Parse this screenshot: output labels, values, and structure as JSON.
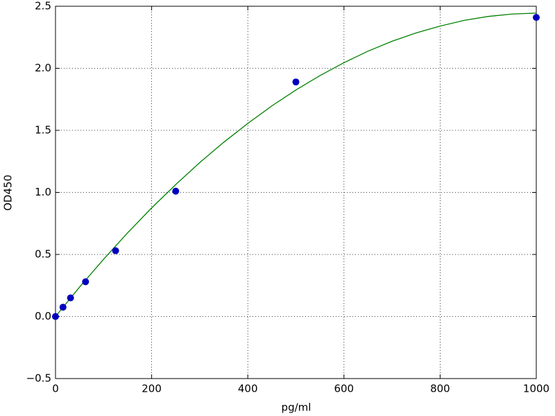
{
  "chart_data": {
    "type": "scatter",
    "xlabel": "pg/ml",
    "ylabel": "OD450",
    "xlim": [
      0,
      1000
    ],
    "ylim": [
      -0.5,
      2.5
    ],
    "xticks": [
      0,
      200,
      400,
      600,
      800,
      1000
    ],
    "yticks": [
      {
        "value": -0.5,
        "label": "−0.5"
      },
      {
        "value": 0,
        "label": "0.0"
      },
      0.5,
      {
        "value": 1,
        "label": "1.0"
      },
      1.5,
      {
        "value": 2,
        "label": "2.0"
      },
      2.5
    ],
    "grid": true,
    "series": [
      {
        "mode": "markers",
        "color": "#0000bf",
        "x": [
          0,
          15.6,
          31.25,
          62.5,
          125,
          250,
          500,
          1000
        ],
        "values": [
          0.0,
          0.075,
          0.15,
          0.28,
          0.53,
          1.01,
          1.89,
          2.41
        ]
      },
      {
        "mode": "line",
        "color": "#008000",
        "x": [
          0,
          50,
          100,
          150,
          200,
          250,
          300,
          350,
          400,
          450,
          500,
          550,
          600,
          650,
          700,
          750,
          800,
          850,
          900,
          950,
          1000
        ],
        "values": [
          0,
          0.237,
          0.461,
          0.674,
          0.875,
          1.063,
          1.24,
          1.404,
          1.556,
          1.697,
          1.825,
          1.941,
          2.045,
          2.138,
          2.218,
          2.285,
          2.34,
          2.386,
          2.418,
          2.437,
          2.445
        ]
      }
    ]
  }
}
